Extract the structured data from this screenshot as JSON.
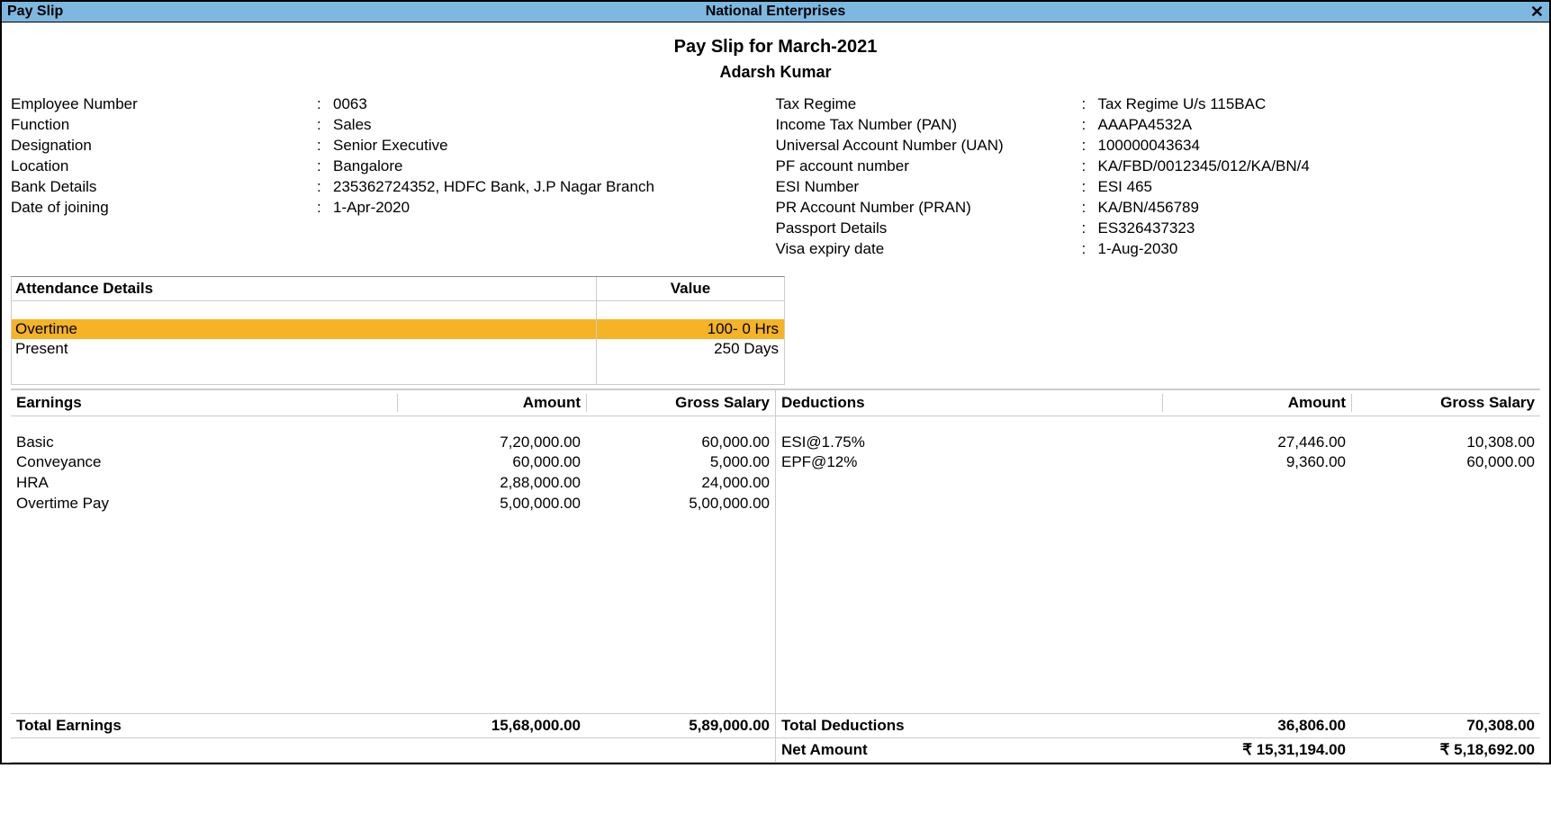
{
  "titlebar": {
    "left": "Pay Slip",
    "center": "National Enterprises",
    "close": "✕"
  },
  "header": {
    "title": "Pay Slip for March-2021",
    "employee_name": "Adarsh Kumar"
  },
  "info_left": [
    {
      "label": "Employee Number",
      "value": "0063"
    },
    {
      "label": "Function",
      "value": "Sales"
    },
    {
      "label": "Designation",
      "value": "Senior Executive"
    },
    {
      "label": "Location",
      "value": "Bangalore"
    },
    {
      "label": "Bank Details",
      "value": "235362724352, HDFC Bank, J.P Nagar Branch"
    },
    {
      "label": "Date of joining",
      "value": "1-Apr-2020"
    }
  ],
  "info_right": [
    {
      "label": "Tax Regime",
      "value": "Tax Regime U/s 115BAC"
    },
    {
      "label": "Income Tax Number (PAN)",
      "value": "AAAPA4532A"
    },
    {
      "label": "Universal Account Number (UAN)",
      "value": "100000043634"
    },
    {
      "label": "PF account number",
      "value": "KA/FBD/0012345/012/KA/BN/4"
    },
    {
      "label": "ESI Number",
      "value": "ESI 465"
    },
    {
      "label": "PR Account Number (PRAN)",
      "value": "KA/BN/456789"
    },
    {
      "label": "Passport Details",
      "value": "ES326437323"
    },
    {
      "label": "Visa expiry date",
      "value": "1-Aug-2030"
    }
  ],
  "attendance": {
    "header_label": "Attendance Details",
    "header_value": "Value",
    "rows": [
      {
        "label": "Overtime",
        "value": "100- 0 Hrs",
        "highlight": true
      },
      {
        "label": "Present",
        "value": "250 Days",
        "highlight": false
      }
    ]
  },
  "earnings": {
    "header": {
      "c1": "Earnings",
      "c2": "Amount",
      "c3": "Gross Salary"
    },
    "rows": [
      {
        "label": "Basic",
        "amount": "7,20,000.00",
        "gross": "60,000.00"
      },
      {
        "label": "Conveyance",
        "amount": "60,000.00",
        "gross": "5,000.00"
      },
      {
        "label": "HRA",
        "amount": "2,88,000.00",
        "gross": "24,000.00"
      },
      {
        "label": "Overtime Pay",
        "amount": "5,00,000.00",
        "gross": "5,00,000.00"
      }
    ],
    "total": {
      "label": "Total Earnings",
      "amount": "15,68,000.00",
      "gross": "5,89,000.00"
    }
  },
  "deductions": {
    "header": {
      "c1": "Deductions",
      "c2": "Amount",
      "c3": "Gross Salary"
    },
    "rows": [
      {
        "label": "ESI@1.75%",
        "amount": "27,446.00",
        "gross": "10,308.00"
      },
      {
        "label": "EPF@12%",
        "amount": "9,360.00",
        "gross": "60,000.00"
      }
    ],
    "total": {
      "label": "Total Deductions",
      "amount": "36,806.00",
      "gross": "70,308.00"
    },
    "net": {
      "label": "Net Amount",
      "amount": "₹ 15,31,194.00",
      "gross": "₹ 5,18,692.00"
    }
  },
  "colors": {
    "titlebar_bg": "#7db8e0",
    "highlight_bg": "#f5b325",
    "border": "#000000",
    "light_border": "#cccccc"
  }
}
